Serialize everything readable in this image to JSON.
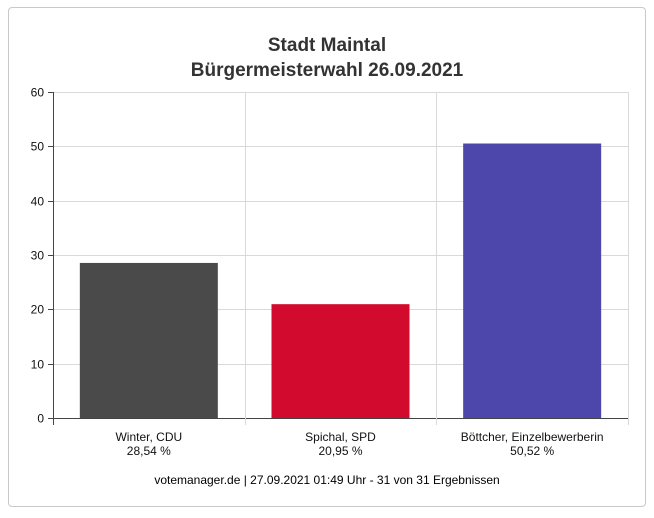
{
  "header": {
    "title_line_1": "Stadt Maintal",
    "title_line_2": "Bürgermeisterwahl 26.09.2021"
  },
  "footer": {
    "text": "votemanager.de | 27.09.2021 01:49 Uhr - 31 von 31 Ergebnissen"
  },
  "chart_data": {
    "type": "bar",
    "title": "Stadt Maintal\nBürgermeisterwahl 26.09.2021",
    "categories": [
      "Winter, CDU",
      "Spichal, SPD",
      "Böttcher, Einzelbewerberin"
    ],
    "values": [
      28.54,
      20.95,
      50.52
    ],
    "value_labels": [
      "28,54 %",
      "20,95 %",
      "50,52 %"
    ],
    "colors": [
      "#4a4a4a",
      "#d20a2e",
      "#4d46ab"
    ],
    "ylim": [
      0,
      60
    ],
    "yticks": [
      0,
      10,
      20,
      30,
      40,
      50,
      60
    ],
    "xlabel": "",
    "ylabel": "",
    "grid": true,
    "legend": "none"
  }
}
